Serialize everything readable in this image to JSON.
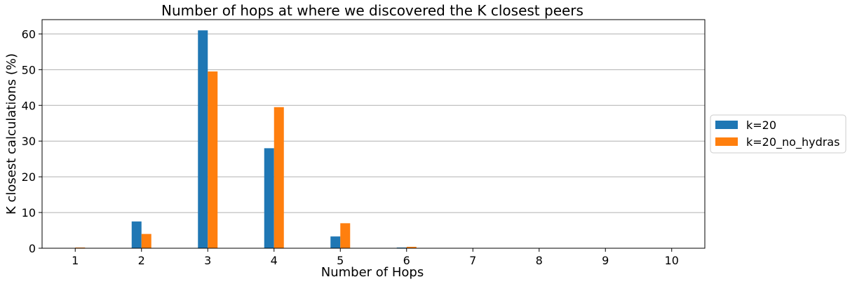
{
  "chart_data": {
    "type": "bar",
    "title": "Number of hops at where we discovered the K closest peers",
    "xlabel": "Number of Hops",
    "ylabel": "K closest calculations (%)",
    "categories": [
      "1",
      "2",
      "3",
      "4",
      "5",
      "6",
      "7",
      "8",
      "9",
      "10"
    ],
    "yticks": [
      "0",
      "10",
      "20",
      "30",
      "40",
      "50",
      "60"
    ],
    "ylim": [
      0,
      64
    ],
    "grid": "horizontal",
    "legend_position": "right",
    "series": [
      {
        "name": "k=20",
        "color": "#1f77b4",
        "values": [
          0,
          7.5,
          61,
          28,
          3.3,
          0.2,
          0,
          0,
          0,
          0
        ]
      },
      {
        "name": "k=20_no_hydras",
        "color": "#ff7f0e",
        "values": [
          0.2,
          4.0,
          49.5,
          39.5,
          7.0,
          0.4,
          0,
          0,
          0,
          0
        ]
      }
    ]
  }
}
